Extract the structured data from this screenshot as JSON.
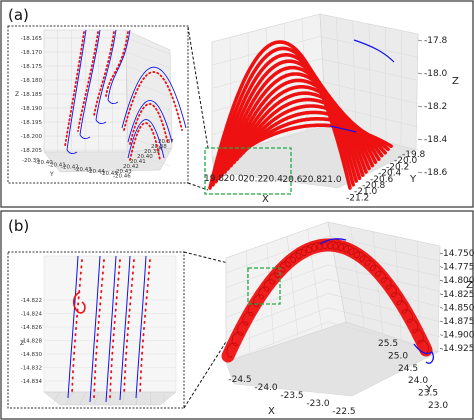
{
  "chart_data": [
    {
      "panel": "(a)",
      "type": "line",
      "main": {
        "z_ticks": [
          "-17.8",
          "-18.0",
          "-18.2",
          "-18.4",
          "-18.6"
        ],
        "x_ticks": [
          "19.8",
          "20.0",
          "20.2",
          "20.4",
          "20.6",
          "20.8",
          "21.0"
        ],
        "y_ticks": [
          "-19.8",
          "-20.0",
          "-20.2",
          "-20.4",
          "-20.6",
          "-20.8",
          "-21.0",
          "-21.2"
        ],
        "xlabel": "X",
        "ylabel": "Y",
        "zlabel": "Z",
        "arches": 14,
        "xlim": [
          19.8,
          21.0
        ],
        "ylim": [
          -21.2,
          -19.8
        ],
        "zlim": [
          -18.6,
          -17.8
        ]
      },
      "inset": {
        "z_ticks": [
          "-18.165",
          "-18.170",
          "-18.175",
          "-18.180",
          "-18.185",
          "-18.190",
          "-18.195",
          "-18.200",
          "-18.205"
        ],
        "x_ticks": [
          "20.37",
          "20.38",
          "20.39",
          "20.40",
          "20.41",
          "20.42",
          "20.43"
        ],
        "y_ticks": [
          "-20.39",
          "-20.40",
          "-20.41",
          "-20.42",
          "-20.43",
          "-20.44",
          "-20.45",
          "-20.46"
        ],
        "xlabel": "X",
        "ylabel": "Y",
        "zlabel": "Z"
      },
      "series": [
        {
          "name": "",
          "color": "#1010ee",
          "style": "solid line"
        },
        {
          "name": "",
          "color": "#ee1111",
          "style": "dots"
        }
      ]
    },
    {
      "panel": "(b)",
      "type": "line",
      "main": {
        "z_ticks": [
          "14.750",
          "14.775",
          "14.800",
          "14.825",
          "14.850",
          "14.875",
          "14.900",
          "14.925"
        ],
        "x_ticks": [
          "-24.5",
          "-24.0",
          "-23.5",
          "-23.0",
          "-22.5"
        ],
        "y_ticks": [
          "23.0",
          "23.5",
          "24.0",
          "24.5",
          "25.0",
          "25.5"
        ],
        "xlabel": "X",
        "ylabel": "Y",
        "zlabel": "Z",
        "xlim": [
          -24.5,
          -22.5
        ],
        "ylim": [
          23.0,
          25.5
        ],
        "zlim": [
          14.75,
          14.925
        ]
      },
      "inset": {
        "z_ticks": [
          "-14.822",
          "-14.824",
          "-14.826",
          "-14.828",
          "-14.830",
          "-14.832",
          "-14.834"
        ],
        "zlabel": "Z"
      },
      "series": [
        {
          "name": "",
          "color": "#1010ee",
          "style": "solid line"
        },
        {
          "name": "",
          "color": "#ee1111",
          "style": "dots"
        }
      ]
    }
  ],
  "labels": {
    "a": "(a)",
    "b": "(b)"
  },
  "colors": {
    "blue": "#1010ee",
    "red": "#ee1111",
    "green_box": "#22aa44",
    "panel_border": "#333333",
    "axis_pane": "#f3f3f3"
  }
}
